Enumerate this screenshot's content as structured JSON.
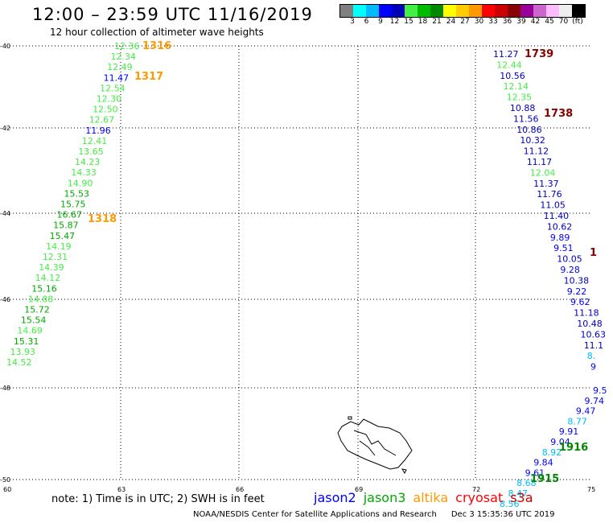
{
  "header": {
    "title": "12:00 – 23:59 UTC 11/16/2019",
    "subtitle": "12 hour collection of altimeter wave heights"
  },
  "scale": {
    "colors": [
      "#808080",
      "#00ffff",
      "#00bbff",
      "#0000ff",
      "#0000bb",
      "#44ee44",
      "#00bb00",
      "#008800",
      "#ffff00",
      "#ffcc00",
      "#ff9900",
      "#ff0000",
      "#cc0000",
      "#880000",
      "#990099",
      "#cc66cc",
      "#ffbbff",
      "#eeeeee",
      "#000000"
    ],
    "labels": [
      "3",
      "6",
      "9",
      "12",
      "15",
      "18",
      "21",
      "24",
      "27",
      "30",
      "33",
      "36",
      "39",
      "42",
      "45",
      "70",
      "(ft)"
    ]
  },
  "map": {
    "lat_labels": [
      "-40",
      "-42",
      "-44",
      "-46",
      "-48",
      "-50"
    ],
    "lon_labels": [
      "60",
      "63",
      "66",
      "69",
      "72",
      "75"
    ]
  },
  "tracks": [
    {
      "name": "track-west",
      "color_key": "jason3",
      "points": [
        {
          "v": "12.36",
          "c": "#44ee44"
        },
        {
          "v": "12.34",
          "c": "#44ee44"
        },
        {
          "v": "12.49",
          "c": "#44ee44"
        },
        {
          "v": "11.47",
          "c": "#0000ff"
        },
        {
          "v": "12.54",
          "c": "#44ee44"
        },
        {
          "v": "12.30",
          "c": "#44ee44"
        },
        {
          "v": "12.50",
          "c": "#44ee44"
        },
        {
          "v": "12.67",
          "c": "#44ee44"
        },
        {
          "v": "11.96",
          "c": "#0000ff"
        },
        {
          "v": "12.41",
          "c": "#44ee44"
        },
        {
          "v": "13.65",
          "c": "#44ee44"
        },
        {
          "v": "14.23",
          "c": "#44ee44"
        },
        {
          "v": "14.33",
          "c": "#44ee44"
        },
        {
          "v": "14.90",
          "c": "#44ee44"
        },
        {
          "v": "15.53",
          "c": "#00aa00"
        },
        {
          "v": "15.75",
          "c": "#00aa00"
        },
        {
          "v": "16.67",
          "c": "#00aa00"
        },
        {
          "v": "15.87",
          "c": "#00aa00"
        },
        {
          "v": "15.47",
          "c": "#00aa00"
        },
        {
          "v": "14.19",
          "c": "#44ee44"
        },
        {
          "v": "12.31",
          "c": "#44ee44"
        },
        {
          "v": "14.39",
          "c": "#44ee44"
        },
        {
          "v": "14.12",
          "c": "#44ee44"
        },
        {
          "v": "15.16",
          "c": "#00aa00"
        },
        {
          "v": "14.88",
          "c": "#44ee44"
        },
        {
          "v": "15.72",
          "c": "#00aa00"
        },
        {
          "v": "15.54",
          "c": "#00aa00"
        },
        {
          "v": "14.69",
          "c": "#44ee44"
        },
        {
          "v": "15.31",
          "c": "#00aa00"
        },
        {
          "v": "13.93",
          "c": "#44ee44"
        },
        {
          "v": "14.52",
          "c": "#44ee44"
        }
      ]
    },
    {
      "name": "track-east-upper",
      "color_key": "jason2",
      "points": [
        {
          "v": "11.27",
          "c": "#0000bb"
        },
        {
          "v": "12.44",
          "c": "#44ee44"
        },
        {
          "v": "10.56",
          "c": "#0000bb"
        },
        {
          "v": "12.14",
          "c": "#44ee44"
        },
        {
          "v": "12.35",
          "c": "#44ee44"
        },
        {
          "v": "10.88",
          "c": "#0000bb"
        },
        {
          "v": "11.56",
          "c": "#0000bb"
        },
        {
          "v": "10.86",
          "c": "#0000bb"
        },
        {
          "v": "10.32",
          "c": "#0000bb"
        },
        {
          "v": "11.12",
          "c": "#0000bb"
        },
        {
          "v": "11.17",
          "c": "#0000bb"
        },
        {
          "v": "12.04",
          "c": "#44ee44"
        },
        {
          "v": "11.37",
          "c": "#0000bb"
        },
        {
          "v": "11.76",
          "c": "#0000bb"
        },
        {
          "v": "11.05",
          "c": "#0000bb"
        },
        {
          "v": "11.40",
          "c": "#0000bb"
        },
        {
          "v": "10.62",
          "c": "#0000bb"
        },
        {
          "v": "9.89",
          "c": "#0000ff"
        },
        {
          "v": "9.51",
          "c": "#0000ff"
        },
        {
          "v": "10.05",
          "c": "#0000bb"
        },
        {
          "v": "9.28",
          "c": "#0000ff"
        },
        {
          "v": "10.38",
          "c": "#0000bb"
        },
        {
          "v": "9.22",
          "c": "#0000ff"
        },
        {
          "v": "9.62",
          "c": "#0000ff"
        },
        {
          "v": "11.18",
          "c": "#0000bb"
        },
        {
          "v": "10.48",
          "c": "#0000bb"
        },
        {
          "v": "10.63",
          "c": "#0000bb"
        },
        {
          "v": "11.1",
          "c": "#0000bb"
        },
        {
          "v": "8.",
          "c": "#00bbff"
        },
        {
          "v": "9",
          "c": "#0000ff"
        }
      ]
    },
    {
      "name": "track-east-lower",
      "color_key": "jason2",
      "points": [
        {
          "v": "9.5",
          "c": "#0000ff"
        },
        {
          "v": "9.74",
          "c": "#0000ff"
        },
        {
          "v": "9.47",
          "c": "#0000ff"
        },
        {
          "v": "8.77",
          "c": "#00bbff"
        },
        {
          "v": "9.91",
          "c": "#0000ff"
        },
        {
          "v": "9.04",
          "c": "#0000ff"
        },
        {
          "v": "8.92",
          "c": "#00bbff"
        },
        {
          "v": "9.84",
          "c": "#0000ff"
        },
        {
          "v": "9.61",
          "c": "#0000ff"
        },
        {
          "v": "8.68",
          "c": "#00bbff"
        },
        {
          "v": "8.47",
          "c": "#00bbff"
        },
        {
          "v": "8.56",
          "c": "#00bbff"
        }
      ]
    }
  ],
  "time_labels": [
    {
      "text": "1316",
      "c": "#ff9900"
    },
    {
      "text": "1317",
      "c": "#ff9900"
    },
    {
      "text": "1318",
      "c": "#ff9900"
    },
    {
      "text": "1739",
      "c": "#880000"
    },
    {
      "text": "1738",
      "c": "#880000"
    },
    {
      "text": "1",
      "c": "#880000"
    },
    {
      "text": "1916",
      "c": "#008800"
    },
    {
      "text": "1915",
      "c": "#008800"
    }
  ],
  "footer": {
    "note": "note:  1) Time is in UTC;  2) SWH is in feet",
    "satellites": [
      {
        "name": "jason2",
        "color": "#0000ff"
      },
      {
        "name": "jason3",
        "color": "#00aa00"
      },
      {
        "name": "altika",
        "color": "#ff9900"
      },
      {
        "name": "cryosat",
        "color": "#ff0000"
      },
      {
        "name": "s3a",
        "color": "#cc0000"
      }
    ],
    "credit": "NOAA/NESDIS Center for Satellite Applications and Research",
    "timestamp": "Dec  3 15:35:36 UTC 2019"
  }
}
